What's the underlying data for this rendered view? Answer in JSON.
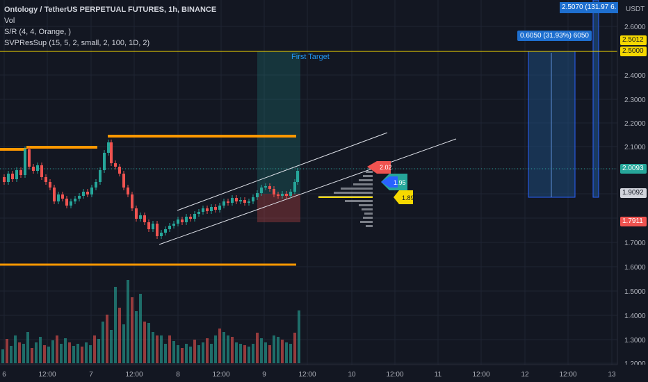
{
  "legend": {
    "title": "Ontology / TetherUS PERPETUAL FUTURES, 1h, BINANCE",
    "vol": "Vol",
    "sr": "S/R (4, 4, Orange, )",
    "svp": "SVPResSup (15, 5, 2, small, 2, 100, 1D, 2)"
  },
  "currency": "USDT",
  "price_axis": [
    "2.6000",
    "2.4000",
    "2.3000",
    "2.2000",
    "2.1000",
    "1.7000",
    "1.6000",
    "1.5000",
    "1.4000",
    "1.3000",
    "1.2000"
  ],
  "time_axis": [
    "6",
    "12:00",
    "7",
    "12:00",
    "8",
    "12:00",
    "9",
    "12:00",
    "10",
    "12:00",
    "11",
    "12:00",
    "12",
    "12:00",
    "13"
  ],
  "price_tags": {
    "target_top": "2.5070 (131.97",
    "target_top_suffix": "6.",
    "p_25012": "2.5012",
    "p_25000": "2.5000",
    "p_20093": "2.0093",
    "p_19092": "1.9092",
    "p_17911": "1.7911"
  },
  "annotations": {
    "first_target": "First Target",
    "measure_box": "0.6050 (31.93%) 6050",
    "svp_red": "2.02",
    "svp_green": "1.95",
    "svp_yellow": "1.89"
  },
  "colors": {
    "bg": "#131722",
    "up": "#26a69a",
    "down": "#ef5350",
    "orange": "#ff9800",
    "yellow": "#f5d800",
    "blue": "#2962ff"
  }
}
